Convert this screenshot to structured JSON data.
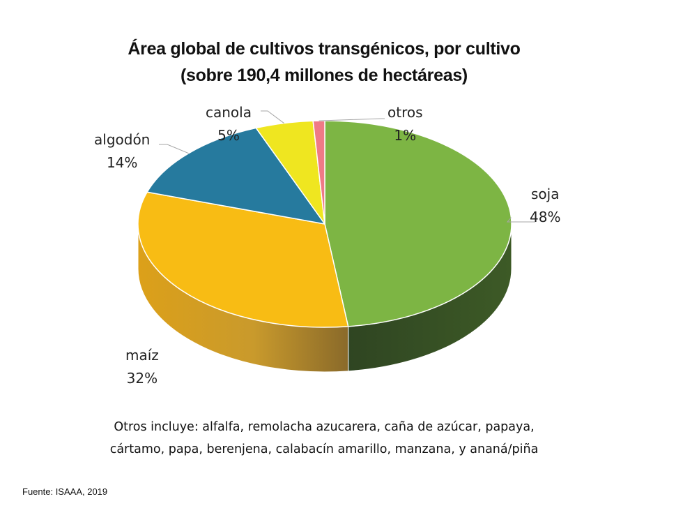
{
  "chart_data": {
    "type": "pie",
    "title": "Área global de cultivos transgénicos, por cultivo",
    "subtitle": "(sobre 190,4 millones de hectáreas)",
    "slices": [
      {
        "label": "soja",
        "value": 48,
        "value_label": "48%",
        "color": "#7db544"
      },
      {
        "label": "maíz",
        "value": 32,
        "value_label": "32%",
        "color": "#f8bc14"
      },
      {
        "label": "algodón",
        "value": 14,
        "value_label": "14%",
        "color": "#267a9e"
      },
      {
        "label": "canola",
        "value": 5,
        "value_label": "5%",
        "color": "#efe620"
      },
      {
        "label": "otros",
        "value": 1,
        "value_label": "1%",
        "color": "#ef7a86"
      }
    ],
    "style": "3D tilted pie"
  },
  "notes": {
    "line1": "Otros incluye: alfalfa, remolacha azucarera, caña de azúcar, papaya,",
    "line2": "cártamo, papa, berenjena, calabacín amarillo, manzana, y ananá/piña"
  },
  "source": "Fuente: ISAAA, 2019"
}
